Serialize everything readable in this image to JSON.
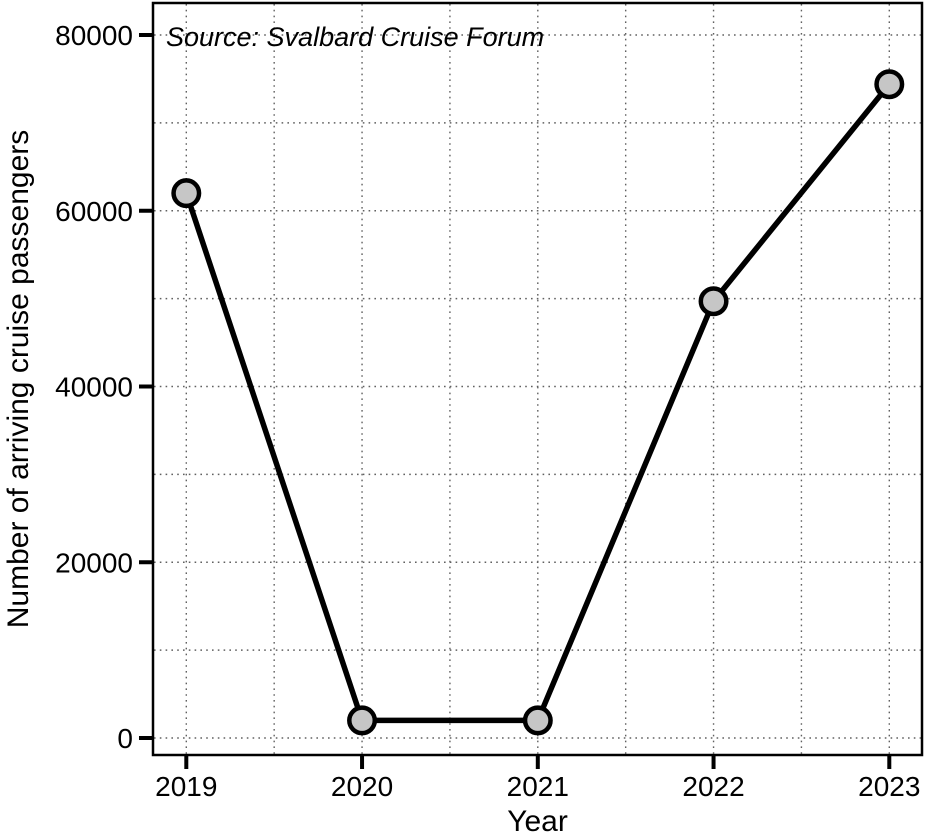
{
  "chart_data": {
    "type": "line",
    "title": "",
    "x": [
      2019,
      2020,
      2021,
      2022,
      2023
    ],
    "x_tick_labels": [
      "2019",
      "2020",
      "2021",
      "2022",
      "2023"
    ],
    "values": [
      62000,
      2000,
      2000,
      49700,
      74400
    ],
    "series_name": "Number of arriving cruise passengers",
    "xlabel": "Year",
    "ylabel": "Number of arriving cruise passengers",
    "xlim": [
      2019,
      2023
    ],
    "ylim": [
      0,
      80000
    ],
    "y_major_ticks": [
      0,
      20000,
      40000,
      60000,
      80000
    ],
    "y_tick_labels": [
      "0",
      "20000",
      "40000",
      "60000",
      "80000"
    ],
    "grid": {
      "shown": true,
      "style": "dotted",
      "y_step": 10000,
      "x_step": 0.5
    },
    "legend": "none",
    "annotations": [
      {
        "text": "Source: Svalbard Cruise Forum",
        "position": "top-left",
        "style": "italic"
      }
    ],
    "colors": {
      "line": "#000000",
      "marker_fill": "#c6c6c6",
      "marker_stroke": "#000000",
      "grid": "#606060",
      "panel_border": "#000000",
      "tick": "#000000",
      "text": "#000000",
      "background": "#ffffff"
    }
  }
}
